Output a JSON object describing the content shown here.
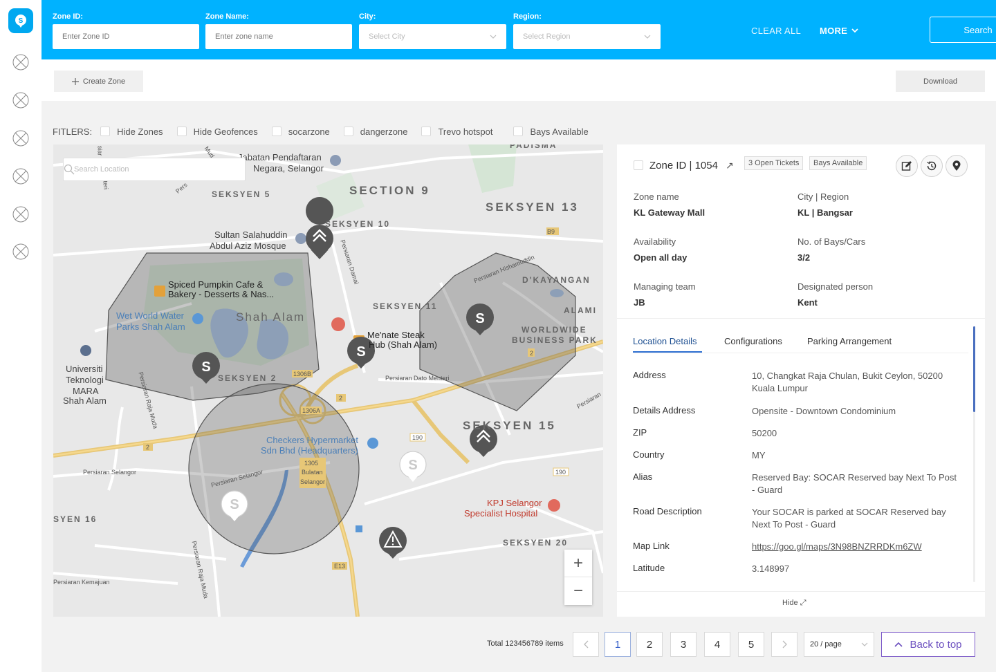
{
  "header": {
    "zone_id": {
      "label": "Zone ID:",
      "placeholder": "Enter Zone ID"
    },
    "zone_name": {
      "label": "Zone Name:",
      "placeholder": "Enter zone name"
    },
    "city": {
      "label": "City:",
      "placeholder": "Select City"
    },
    "region": {
      "label": "Region:",
      "placeholder": "Select Region"
    },
    "clear_all": "CLEAR ALL",
    "more": "MORE",
    "search": "Search"
  },
  "toolbar": {
    "create_zone": "Create Zone",
    "download": "Download"
  },
  "filters": {
    "label": "FITLERS:",
    "items": [
      "Hide Zones",
      "Hide Geofences",
      "socarzone",
      "dangerzone",
      "Trevo hotspot",
      "Bays Available"
    ]
  },
  "map": {
    "search_placeholder": "Search Location",
    "areas": {
      "section9": "SECTION 9",
      "seksyen13": "SEKSYEN 13",
      "seksyen5": "SEKSYEN 5",
      "seksyen10": "SEKSYEN 10",
      "seksyen11": "SEKSYEN 11",
      "shah_alam": "Shah Alam",
      "seksyen2": "SEKSYEN 2",
      "seksyen15": "SEKSYEN 15",
      "seksyen16": "SYEN 16",
      "seksyen20": "SEKSYEN 20",
      "dkayangan": "D'KAYANGAN",
      "alami": "ALAMI",
      "worldwide": "WORLDWIDE",
      "business_park": "BUSINESS PARK",
      "padisma": "PADISMA"
    },
    "pois": {
      "jabatan1": "Jabatan Pendaftaran",
      "jabatan2": "Negara, Selangor",
      "mosque1": "Sultan Salahuddin",
      "mosque2": "Abdul Aziz Mosque",
      "bakery1": "Spiced Pumpkin Cafe &",
      "bakery2": "Bakery - Desserts & Nas...",
      "wetworld1": "Wet World Water",
      "wetworld2": "Parks Shah Alam",
      "menate1": "Me'nate Steak",
      "menate2": "Hub (Shah Alam)",
      "uitm1": "Universiti",
      "uitm2": "Teknologi",
      "uitm3": "MARA",
      "uitm4": "Shah Alam",
      "checkers1": "Checkers Hypermarket",
      "checkers2": "Sdn Bhd (Headquarters)",
      "kpj1": "KPJ Selangor",
      "kpj2": "Specialist Hospital"
    },
    "roads": {
      "persiaran_damai": "Persiaran Damai",
      "persiaran_his": "Persiaran Hishamuddin",
      "persiaran_dato": "Persiaran Dato Menteri",
      "persiaran_raja": "Persiaran Raja Muda",
      "persiaran_selangor": "Persiaran Selangor",
      "persiaran_kemajuan": "Persiaran Kemajuan",
      "persiaran": "Persiaran",
      "b9": "B9",
      "r1306b": "1306B",
      "r1306a": "1306A",
      "r2": "2",
      "r190": "190",
      "r1305": "1305",
      "bulatan": "Bulatan",
      "selangor": "Selangor",
      "e13": "E13",
      "mud": "Mud",
      "siar": "siar",
      "menteri": "Menteri",
      "pers": "Pers"
    },
    "zoom_in": "+",
    "zoom_out": "−"
  },
  "panel": {
    "title": "Zone ID | 1054",
    "tags": [
      "3 Open Tickets",
      "Bays Available"
    ],
    "info": [
      {
        "key": "Zone name",
        "value": "KL Gateway Mall"
      },
      {
        "key": "City | Region",
        "value": "KL | Bangsar"
      },
      {
        "key": "Availability",
        "value": "Open all day"
      },
      {
        "key": "No. of Bays/Cars",
        "value": "3/2"
      },
      {
        "key": "Managing team",
        "value": "JB"
      },
      {
        "key": "Designated person",
        "value": "Kent"
      }
    ],
    "tabs": [
      "Location Details",
      "Configurations",
      "Parking Arrangement"
    ],
    "details": [
      {
        "key": "Address",
        "value": "10, Changkat Raja Chulan, Bukit Ceylon, 50200 Kuala Lumpur"
      },
      {
        "key": "Details Address",
        "value": "Opensite - Downtown Condominium"
      },
      {
        "key": "ZIP",
        "value": "50200"
      },
      {
        "key": "Country",
        "value": "MY"
      },
      {
        "key": "Alias",
        "value": "Reserved Bay: SOCAR Reserved bay Next To Post - Guard"
      },
      {
        "key": "Road Description",
        "value": "Your SOCAR is parked at SOCAR Reserved bay Next To Post - Guard"
      },
      {
        "key": "Map Link",
        "value": "https://goo.gl/maps/3N98BNZRRDKm6ZW"
      },
      {
        "key": "Latitude",
        "value": "3.148997"
      }
    ],
    "hide": "Hide"
  },
  "pagination": {
    "total": "Total 123456789 items",
    "pages": [
      "1",
      "2",
      "3",
      "4",
      "5"
    ],
    "page_size": "20 / page",
    "back_to_top": "Back to top"
  },
  "colors": {
    "brand": "#00b2ff",
    "accent": "#7d5bc9",
    "link": "#2e6fd1"
  }
}
